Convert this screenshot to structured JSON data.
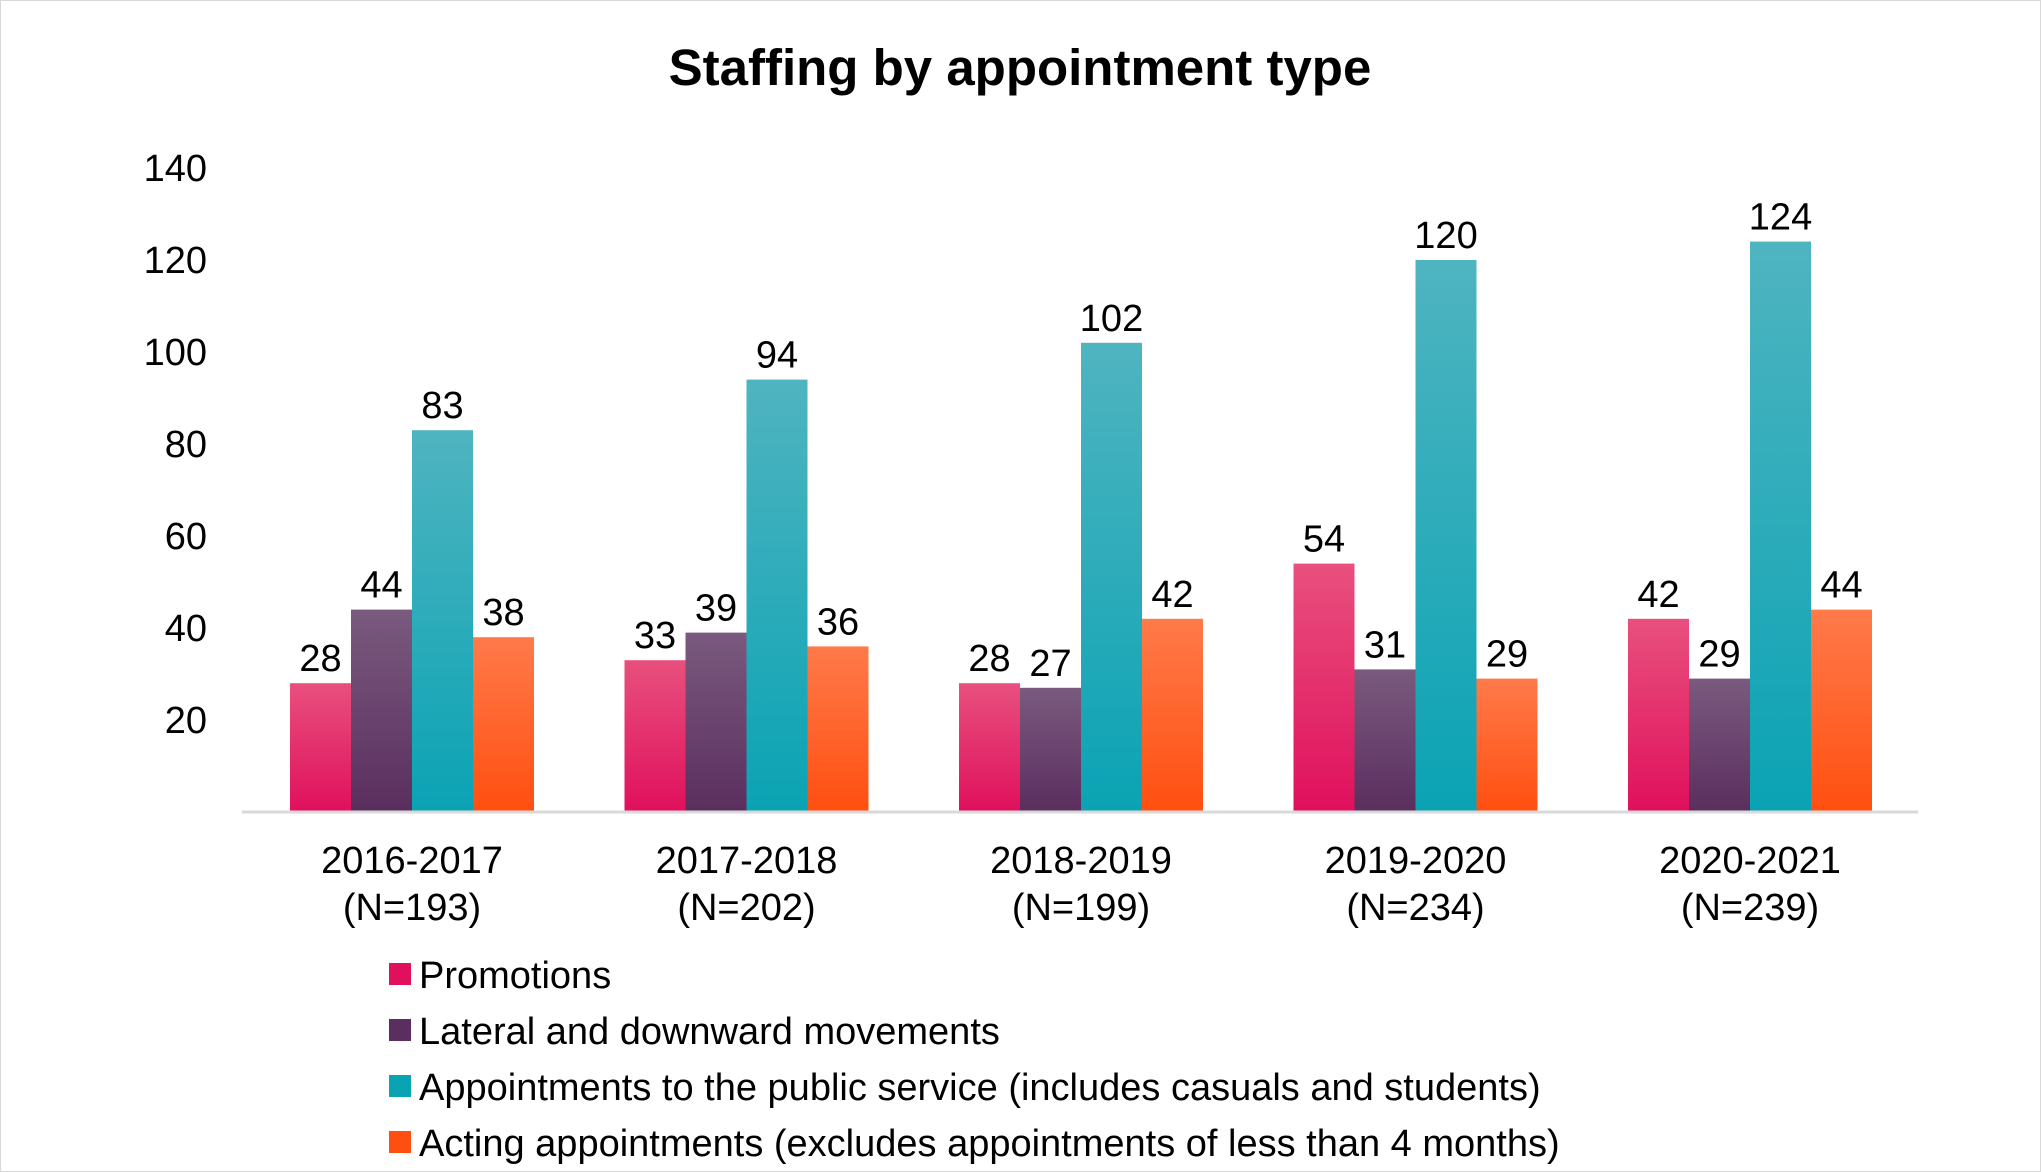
{
  "chart_data": {
    "type": "bar",
    "title": "Staffing by appointment type",
    "xlabel": "",
    "ylabel": "",
    "ylim": [
      0,
      140
    ],
    "yticks": [
      20,
      40,
      60,
      80,
      100,
      120,
      140
    ],
    "grid": false,
    "legend_position": "bottom",
    "categories": [
      [
        "2016-2017",
        "(N=193)"
      ],
      [
        "2017-2018",
        "(N=202)"
      ],
      [
        "2018-2019",
        "(N=199)"
      ],
      [
        "2019-2020",
        "(N=234)"
      ],
      [
        "2020-2021",
        "(N=239)"
      ]
    ],
    "series": [
      {
        "name": "Promotions",
        "values": [
          28,
          33,
          28,
          54,
          42
        ],
        "color_top": "#e8507e",
        "color_bottom": "#e0105c"
      },
      {
        "name": "Lateral and downward movements",
        "values": [
          44,
          39,
          27,
          31,
          29
        ],
        "color_top": "#7a5a7e",
        "color_bottom": "#5a2e5e"
      },
      {
        "name": "Appointments to the public service (includes casuals and students)",
        "values": [
          83,
          94,
          102,
          120,
          124
        ],
        "color_top": "#4fb4c0",
        "color_bottom": "#0aa3b4"
      },
      {
        "name": "Acting appointments (excludes appointments of less than 4 months)",
        "values": [
          38,
          36,
          42,
          29,
          44
        ],
        "color_top": "#ff7a4a",
        "color_bottom": "#ff4f10"
      }
    ]
  }
}
